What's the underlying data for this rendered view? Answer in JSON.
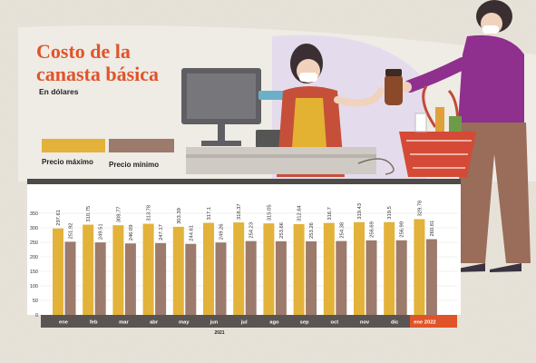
{
  "header": {
    "title_line1": "Costo de la",
    "title_line2": "canasta básica",
    "subtitle": "En dólares"
  },
  "legend": {
    "max_label": "Precio máximo",
    "min_label": "Precio mínimo"
  },
  "colors": {
    "max": "#e2b23a",
    "min": "#9c7a6c",
    "axis_band": "#5a5552",
    "highlight_band": "#e0542a",
    "title": "#e0542a",
    "chart_panel": "#ffffff"
  },
  "chart_data": {
    "type": "bar",
    "title": "Costo de la canasta básica",
    "subtitle": "En dólares",
    "categories": [
      "ene",
      "feb",
      "mar",
      "abr",
      "may",
      "jun",
      "jul",
      "ago",
      "sep",
      "oct",
      "nov",
      "dic",
      "ene 2022"
    ],
    "year_label": "2021",
    "highlighted_category": "ene 2022",
    "series": [
      {
        "name": "Precio máximo",
        "values": [
          297.61,
          310.75,
          308.77,
          313.78,
          303.39,
          317.1,
          318.37,
          315.05,
          312.64,
          316.7,
          319.43,
          319.5,
          329.78
        ]
      },
      {
        "name": "Precio mínimo",
        "values": [
          251.92,
          249.51,
          246.09,
          247.17,
          244.61,
          249.26,
          254.23,
          253.66,
          253.26,
          254.38,
          256.69,
          256.99,
          260.81
        ]
      }
    ],
    "yticks": [
      0,
      50,
      100,
      150,
      200,
      250,
      300,
      350
    ],
    "ylim": [
      0,
      350
    ],
    "grid": true,
    "legend_position": "top-left"
  }
}
